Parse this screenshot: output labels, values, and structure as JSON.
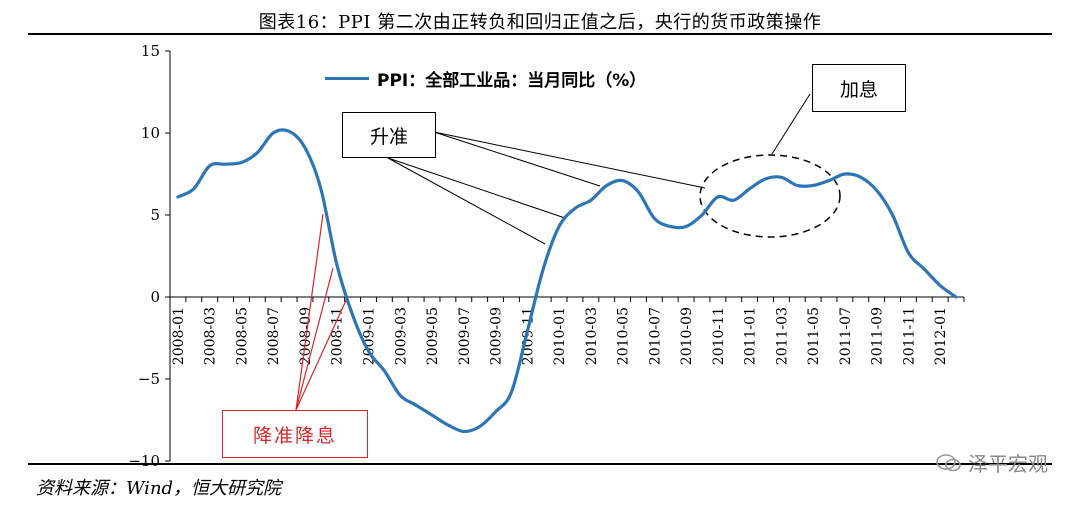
{
  "figure_title": "图表16：PPI 第二次由正转负和回归正值之后，央行的货币政策操作",
  "source_note": "资料来源：Wind，恒大研究院",
  "watermark": "泽平宏观",
  "colors": {
    "line": "#2e75b6",
    "ease_annotation": "#d62728",
    "axis": "#000000"
  },
  "annotations": {
    "tighten_reserve": "升准",
    "rate_hike": "加息",
    "ease": "降准降息"
  },
  "chart_data": {
    "type": "line",
    "title": "",
    "xlabel": "",
    "ylabel": "",
    "ylim": [
      -10,
      15
    ],
    "yticks": [
      -10,
      -5,
      0,
      5,
      10,
      15
    ],
    "ytick_labels": [
      "−10",
      "−5",
      "0",
      "5",
      "10",
      "15"
    ],
    "xtick_labels": [
      "2008-01",
      "2008-03",
      "2008-05",
      "2008-07",
      "2008-09",
      "2008-11",
      "2009-01",
      "2009-03",
      "2009-05",
      "2009-07",
      "2009-09",
      "2009-11",
      "2010-01",
      "2010-03",
      "2010-05",
      "2010-07",
      "2010-09",
      "2010-11",
      "2011-01",
      "2011-03",
      "2011-05",
      "2011-07",
      "2011-09",
      "2011-11",
      "2012-01"
    ],
    "legend_position": "top",
    "grid": false,
    "series": [
      {
        "name": "PPI：全部工业品：当月同比（%）",
        "x": [
          "2008-01",
          "2008-02",
          "2008-03",
          "2008-04",
          "2008-05",
          "2008-06",
          "2008-07",
          "2008-08",
          "2008-09",
          "2008-10",
          "2008-11",
          "2008-12",
          "2009-01",
          "2009-02",
          "2009-03",
          "2009-04",
          "2009-05",
          "2009-06",
          "2009-07",
          "2009-08",
          "2009-09",
          "2009-10",
          "2009-11",
          "2009-12",
          "2010-01",
          "2010-02",
          "2010-03",
          "2010-04",
          "2010-05",
          "2010-06",
          "2010-07",
          "2010-08",
          "2010-09",
          "2010-10",
          "2010-11",
          "2010-12",
          "2011-01",
          "2011-02",
          "2011-03",
          "2011-04",
          "2011-05",
          "2011-06",
          "2011-07",
          "2011-08",
          "2011-09",
          "2011-10",
          "2011-11",
          "2011-12",
          "2012-01",
          "2012-02"
        ],
        "values": [
          6.1,
          6.6,
          8.0,
          8.1,
          8.2,
          8.8,
          10.0,
          10.1,
          9.1,
          6.6,
          2.0,
          -1.1,
          -3.3,
          -4.5,
          -6.0,
          -6.6,
          -7.2,
          -7.8,
          -8.2,
          -7.9,
          -7.0,
          -5.8,
          -2.1,
          1.7,
          4.3,
          5.4,
          5.9,
          6.8,
          7.1,
          6.4,
          4.8,
          4.3,
          4.3,
          5.0,
          6.1,
          5.9,
          6.6,
          7.2,
          7.3,
          6.8,
          6.8,
          7.1,
          7.5,
          7.3,
          6.5,
          5.0,
          2.7,
          1.7,
          0.7,
          0.0
        ]
      }
    ]
  }
}
